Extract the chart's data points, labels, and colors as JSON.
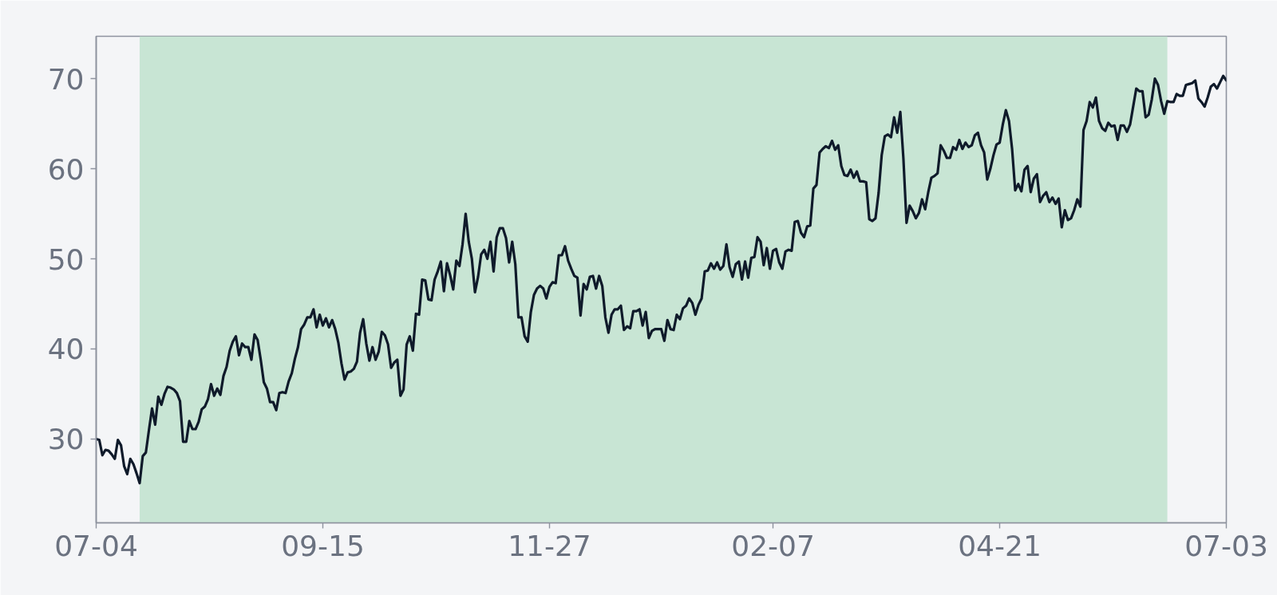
{
  "chart_data": {
    "type": "line",
    "categories": [
      "07-04",
      null,
      null,
      null,
      null,
      null,
      null,
      null,
      null,
      null,
      null,
      null,
      null,
      null,
      null,
      null,
      null,
      null,
      null,
      null,
      null,
      null,
      null,
      null,
      null,
      null,
      null,
      null,
      null,
      null,
      null,
      null,
      null,
      null,
      null,
      null,
      null,
      null,
      null,
      null,
      null,
      null,
      null,
      null,
      null,
      null,
      null,
      null,
      null,
      null,
      null,
      null,
      null,
      null,
      null,
      null,
      null,
      null,
      null,
      null,
      null,
      null,
      null,
      null,
      null,
      null,
      null,
      null,
      null,
      null,
      null,
      null,
      null,
      "09-15",
      null,
      null,
      null,
      null,
      null,
      null,
      null,
      null,
      null,
      null,
      null,
      null,
      null,
      null,
      null,
      null,
      null,
      null,
      null,
      null,
      null,
      null,
      null,
      null,
      null,
      null,
      null,
      null,
      null,
      null,
      null,
      null,
      null,
      null,
      null,
      null,
      null,
      null,
      null,
      null,
      null,
      null,
      null,
      null,
      null,
      null,
      null,
      null,
      null,
      null,
      null,
      null,
      null,
      null,
      null,
      null,
      null,
      null,
      null,
      null,
      null,
      null,
      null,
      null,
      null,
      null,
      null,
      null,
      null,
      null,
      null,
      null,
      "11-27",
      null,
      null,
      null,
      null,
      null,
      null,
      null,
      null,
      null,
      null,
      null,
      null,
      null,
      null,
      null,
      null,
      null,
      null,
      null,
      null,
      null,
      null,
      null,
      null,
      null,
      null,
      null,
      null,
      null,
      null,
      null,
      null,
      null,
      null,
      null,
      null,
      null,
      null,
      null,
      null,
      null,
      null,
      null,
      null,
      null,
      null,
      null,
      null,
      null,
      null,
      null,
      null,
      null,
      null,
      null,
      null,
      null,
      null,
      null,
      null,
      null,
      null,
      null,
      null,
      null,
      null,
      null,
      null,
      null,
      null,
      null,
      "02-07",
      null,
      null,
      null,
      null,
      null,
      null,
      null,
      null,
      null,
      null,
      null,
      null,
      null,
      null,
      null,
      null,
      null,
      null,
      null,
      null,
      null,
      null,
      null,
      null,
      null,
      null,
      null,
      null,
      null,
      null,
      null,
      null,
      null,
      null,
      null,
      null,
      null,
      null,
      null,
      null,
      null,
      null,
      null,
      null,
      null,
      null,
      null,
      null,
      null,
      null,
      null,
      null,
      null,
      null,
      null,
      null,
      null,
      null,
      null,
      null,
      null,
      null,
      null,
      null,
      null,
      null,
      null,
      null,
      null,
      null,
      null,
      null,
      "04-21",
      null,
      null,
      null,
      null,
      null,
      null,
      null,
      null,
      null,
      null,
      null,
      null,
      null,
      null,
      null,
      null,
      null,
      null,
      null,
      null,
      null,
      null,
      null,
      null,
      null,
      null,
      null,
      null,
      null,
      null,
      null,
      null,
      null,
      null,
      null,
      null,
      null,
      null,
      null,
      null,
      null,
      null,
      null,
      null,
      null,
      null,
      null,
      null,
      null,
      null,
      null,
      null,
      null,
      null,
      null,
      null,
      null,
      null,
      null,
      null,
      null,
      null,
      null,
      null,
      null,
      null,
      null,
      null,
      null,
      null,
      null,
      null,
      "07-03"
    ],
    "ylim": [
      20.7,
      74.7
    ],
    "yticks": [
      30,
      40,
      50,
      60,
      70
    ],
    "series": [
      {
        "color": "#0f1a2a",
        "values": [
          30.0,
          29.9,
          28.2,
          28.8,
          28.7,
          28.3,
          27.8,
          29.9,
          29.3,
          27.0,
          26.1,
          27.8,
          27.2,
          26.2,
          25.1,
          28.1,
          28.5,
          31.0,
          33.4,
          31.6,
          34.7,
          33.8,
          35.0,
          35.8,
          35.7,
          35.5,
          35.1,
          34.2,
          29.7,
          29.7,
          32.0,
          31.1,
          31.1,
          31.9,
          33.3,
          33.6,
          34.4,
          36.1,
          34.8,
          35.6,
          34.9,
          37.0,
          38.0,
          39.8,
          40.8,
          41.4,
          39.3,
          40.6,
          40.2,
          40.2,
          38.8,
          41.6,
          41.0,
          38.8,
          36.3,
          35.6,
          34.1,
          34.1,
          33.2,
          35.1,
          35.2,
          35.1,
          36.4,
          37.3,
          38.9,
          40.2,
          42.2,
          42.7,
          43.5,
          43.5,
          44.4,
          42.4,
          43.8,
          42.6,
          43.4,
          42.4,
          43.2,
          42.2,
          40.7,
          38.4,
          36.6,
          37.4,
          37.5,
          37.8,
          38.6,
          41.8,
          43.3,
          40.6,
          38.7,
          40.2,
          38.8,
          39.7,
          41.9,
          41.5,
          40.5,
          37.9,
          38.5,
          38.8,
          34.8,
          35.5,
          40.5,
          41.4,
          39.8,
          43.9,
          43.8,
          47.7,
          47.6,
          45.5,
          45.4,
          47.7,
          48.6,
          49.7,
          46.4,
          49.5,
          48.2,
          46.6,
          49.8,
          49.2,
          51.6,
          55.0,
          51.9,
          50.0,
          46.3,
          48.0,
          50.5,
          51.0,
          50.0,
          51.9,
          48.6,
          52.4,
          53.4,
          53.4,
          52.3,
          49.6,
          51.9,
          49.4,
          43.5,
          43.5,
          41.4,
          40.8,
          44.1,
          46.0,
          46.7,
          47.0,
          46.7,
          45.6,
          46.9,
          47.4,
          47.3,
          50.4,
          50.4,
          51.4,
          49.8,
          48.9,
          48.1,
          47.9,
          43.7,
          47.2,
          46.6,
          48.0,
          48.1,
          46.7,
          48.1,
          47.0,
          43.5,
          41.8,
          43.8,
          44.4,
          44.4,
          44.8,
          42.1,
          42.5,
          42.3,
          44.2,
          44.2,
          44.4,
          42.6,
          44.1,
          41.2,
          42.0,
          42.2,
          42.2,
          42.2,
          40.9,
          43.2,
          42.2,
          42.1,
          43.8,
          43.3,
          44.5,
          44.8,
          45.6,
          45.1,
          43.8,
          44.9,
          45.6,
          48.6,
          48.7,
          49.5,
          48.9,
          49.6,
          48.8,
          49.2,
          51.6,
          49.1,
          48.0,
          49.4,
          49.7,
          47.7,
          49.7,
          47.9,
          50.1,
          50.2,
          52.4,
          51.9,
          49.3,
          51.2,
          48.9,
          50.9,
          51.1,
          49.6,
          48.9,
          50.8,
          51.0,
          50.9,
          54.1,
          54.2,
          52.9,
          52.4,
          53.6,
          53.7,
          57.8,
          58.2,
          61.8,
          62.2,
          62.5,
          62.3,
          63.1,
          62.1,
          62.6,
          60.3,
          59.3,
          59.2,
          59.9,
          59.0,
          59.7,
          58.6,
          58.6,
          58.5,
          54.4,
          54.2,
          54.5,
          57.3,
          61.5,
          63.6,
          63.8,
          63.5,
          65.7,
          64.0,
          66.3,
          61.1,
          54.0,
          55.9,
          55.3,
          54.5,
          55.1,
          56.6,
          55.5,
          57.4,
          59.0,
          59.2,
          59.5,
          62.6,
          62.0,
          61.2,
          61.2,
          62.4,
          62.1,
          63.2,
          62.2,
          62.9,
          62.4,
          62.6,
          63.7,
          64.0,
          62.6,
          61.8,
          58.8,
          60.0,
          61.5,
          62.7,
          62.9,
          64.9,
          66.5,
          65.3,
          62.2,
          57.6,
          58.3,
          57.5,
          59.9,
          60.3,
          57.4,
          58.9,
          59.4,
          56.3,
          57.0,
          57.4,
          56.3,
          56.8,
          56.1,
          56.7,
          53.5,
          55.4,
          54.3,
          54.5,
          55.4,
          56.6,
          55.8,
          64.3,
          65.3,
          67.4,
          66.8,
          67.9,
          65.3,
          64.5,
          64.2,
          65.1,
          64.7,
          64.8,
          63.2,
          64.8,
          64.8,
          64.1,
          64.9,
          66.9,
          68.9,
          68.6,
          68.6,
          65.7,
          66.0,
          67.7,
          70.0,
          69.3,
          67.5,
          66.1,
          67.5,
          67.4,
          67.4,
          68.3,
          68.1,
          68.1,
          69.3,
          69.4,
          69.5,
          69.8,
          67.8,
          67.4,
          66.9,
          67.9,
          69.1,
          69.4,
          68.9,
          69.6,
          70.3,
          69.8
        ]
      }
    ]
  }
}
